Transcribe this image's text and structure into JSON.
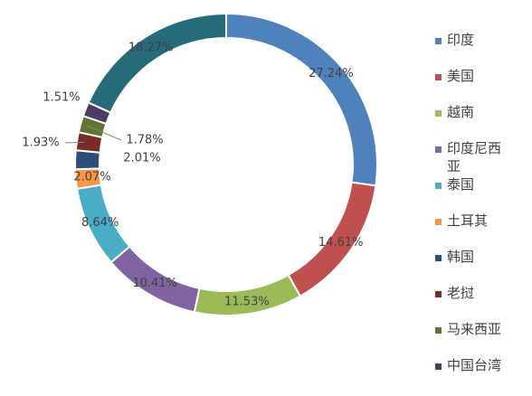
{
  "chart_data": {
    "type": "donut",
    "categories": [
      "印度",
      "美国",
      "越南",
      "印度尼西亚",
      "泰国",
      "土耳其",
      "韩国",
      "老挝",
      "马来西亚",
      "中国台湾",
      null
    ],
    "values": [
      27.24,
      14.61,
      11.53,
      10.41,
      8.64,
      2.07,
      2.01,
      1.93,
      1.78,
      1.51,
      18.27
    ],
    "value_labels": [
      "27.24%",
      "14.61%",
      "11.53%",
      "10.41%",
      "8.64%",
      "2.07%",
      "2.01%",
      "1.93%",
      "1.78%",
      "1.51%",
      "18.27%"
    ],
    "colors": [
      "#4f81bd",
      "#c0504d",
      "#9bbb59",
      "#8064a2",
      "#4bacc6",
      "#f79646",
      "#2c4d75",
      "#772c2a",
      "#5f7530",
      "#4d3b62",
      "#276a7c"
    ],
    "legend": "right"
  }
}
